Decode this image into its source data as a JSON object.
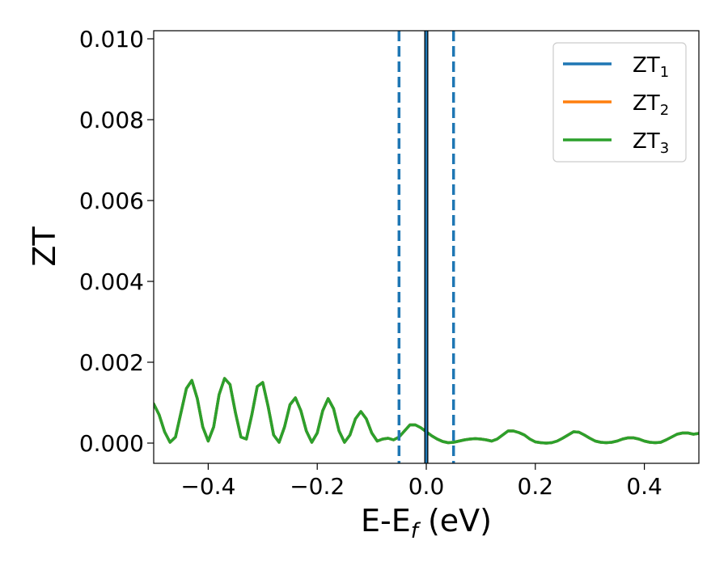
{
  "chart_data": {
    "type": "line",
    "title": "",
    "xlabel": {
      "main": "E-E",
      "sub": "f",
      "suffix": " (eV)"
    },
    "ylabel": "ZT",
    "xlim": [
      -0.5,
      0.5
    ],
    "ylim": [
      -0.0005,
      0.0102
    ],
    "x_ticks": [
      -0.4,
      -0.2,
      0.0,
      0.2,
      0.4
    ],
    "x_tick_labels": [
      "−0.4",
      "−0.2",
      "0.0",
      "0.2",
      "0.4"
    ],
    "y_ticks": [
      0.0,
      0.002,
      0.004,
      0.006,
      0.008,
      0.01
    ],
    "y_tick_labels": [
      "0.000",
      "0.002",
      "0.004",
      "0.006",
      "0.008",
      "0.010"
    ],
    "grid": false,
    "legend_position": "top-right",
    "x": [
      -0.5,
      -0.49,
      -0.48,
      -0.47,
      -0.46,
      -0.45,
      -0.44,
      -0.43,
      -0.42,
      -0.41,
      -0.4,
      -0.39,
      -0.38,
      -0.37,
      -0.36,
      -0.35,
      -0.34,
      -0.33,
      -0.32,
      -0.31,
      -0.3,
      -0.29,
      -0.28,
      -0.27,
      -0.26,
      -0.25,
      -0.24,
      -0.23,
      -0.22,
      -0.21,
      -0.2,
      -0.19,
      -0.18,
      -0.17,
      -0.16,
      -0.15,
      -0.14,
      -0.13,
      -0.12,
      -0.11,
      -0.1,
      -0.09,
      -0.08,
      -0.07,
      -0.06,
      -0.05,
      -0.04,
      -0.03,
      -0.02,
      -0.01,
      0.0,
      0.01,
      0.02,
      0.03,
      0.04,
      0.05,
      0.06,
      0.07,
      0.08,
      0.09,
      0.1,
      0.11,
      0.12,
      0.13,
      0.14,
      0.15,
      0.16,
      0.17,
      0.18,
      0.19,
      0.2,
      0.21,
      0.22,
      0.23,
      0.24,
      0.25,
      0.26,
      0.27,
      0.28,
      0.29,
      0.3,
      0.31,
      0.32,
      0.33,
      0.34,
      0.35,
      0.36,
      0.37,
      0.38,
      0.39,
      0.4,
      0.41,
      0.42,
      0.43,
      0.44,
      0.45,
      0.46,
      0.47,
      0.48,
      0.49,
      0.5
    ],
    "series": [
      {
        "name": "ZT",
        "name_sub": "1",
        "color": "#1f77b4",
        "values": [
          0.00097,
          0.0007,
          0.00028,
          2e-05,
          0.00015,
          0.00075,
          0.00135,
          0.00155,
          0.0011,
          0.0004,
          5e-05,
          0.0004,
          0.0012,
          0.0016,
          0.00145,
          0.00075,
          0.00015,
          0.0001,
          0.0007,
          0.0014,
          0.0015,
          0.0009,
          0.0002,
          2e-05,
          0.0004,
          0.00095,
          0.00112,
          0.0008,
          0.0003,
          2e-05,
          0.00025,
          0.0008,
          0.0011,
          0.00085,
          0.0003,
          2e-05,
          0.0002,
          0.0006,
          0.00078,
          0.0006,
          0.00025,
          5e-05,
          0.0001,
          0.00012,
          8e-05,
          0.00015,
          0.0003,
          0.00045,
          0.00045,
          0.00038,
          0.00028,
          0.00018,
          0.0001,
          4e-05,
          1e-05,
          2e-05,
          5e-05,
          8e-05,
          0.0001,
          0.00011,
          0.0001,
          8e-05,
          5e-05,
          0.0001,
          0.0002,
          0.0003,
          0.0003,
          0.00026,
          0.0002,
          0.0001,
          3e-05,
          1e-05,
          0.0,
          1e-05,
          5e-05,
          0.00012,
          0.0002,
          0.00028,
          0.00027,
          0.0002,
          0.00012,
          5e-05,
          2e-05,
          1e-05,
          2e-05,
          5e-05,
          0.0001,
          0.00013,
          0.00013,
          0.0001,
          5e-05,
          2e-05,
          1e-05,
          2e-05,
          8e-05,
          0.00015,
          0.00022,
          0.00025,
          0.00025,
          0.00022,
          0.00024
        ]
      },
      {
        "name": "ZT",
        "name_sub": "2",
        "color": "#ff7f0e",
        "values": [
          0.00097,
          0.0007,
          0.00028,
          2e-05,
          0.00015,
          0.00075,
          0.00135,
          0.00155,
          0.0011,
          0.0004,
          5e-05,
          0.0004,
          0.0012,
          0.0016,
          0.00145,
          0.00075,
          0.00015,
          0.0001,
          0.0007,
          0.0014,
          0.0015,
          0.0009,
          0.0002,
          2e-05,
          0.0004,
          0.00095,
          0.00112,
          0.0008,
          0.0003,
          2e-05,
          0.00025,
          0.0008,
          0.0011,
          0.00085,
          0.0003,
          2e-05,
          0.0002,
          0.0006,
          0.00078,
          0.0006,
          0.00025,
          5e-05,
          0.0001,
          0.00012,
          8e-05,
          0.00015,
          0.0003,
          0.00045,
          0.00045,
          0.00038,
          0.00028,
          0.00018,
          0.0001,
          4e-05,
          1e-05,
          2e-05,
          5e-05,
          8e-05,
          0.0001,
          0.00011,
          0.0001,
          8e-05,
          5e-05,
          0.0001,
          0.0002,
          0.0003,
          0.0003,
          0.00026,
          0.0002,
          0.0001,
          3e-05,
          1e-05,
          0.0,
          1e-05,
          5e-05,
          0.00012,
          0.0002,
          0.00028,
          0.00027,
          0.0002,
          0.00012,
          5e-05,
          2e-05,
          1e-05,
          2e-05,
          5e-05,
          0.0001,
          0.00013,
          0.00013,
          0.0001,
          5e-05,
          2e-05,
          1e-05,
          2e-05,
          8e-05,
          0.00015,
          0.00022,
          0.00025,
          0.00025,
          0.00022,
          0.00024
        ]
      },
      {
        "name": "ZT",
        "name_sub": "3",
        "color": "#2ca02c",
        "values": [
          0.00097,
          0.0007,
          0.00028,
          2e-05,
          0.00015,
          0.00075,
          0.00135,
          0.00155,
          0.0011,
          0.0004,
          5e-05,
          0.0004,
          0.0012,
          0.0016,
          0.00145,
          0.00075,
          0.00015,
          0.0001,
          0.0007,
          0.0014,
          0.0015,
          0.0009,
          0.0002,
          2e-05,
          0.0004,
          0.00095,
          0.00112,
          0.0008,
          0.0003,
          2e-05,
          0.00025,
          0.0008,
          0.0011,
          0.00085,
          0.0003,
          2e-05,
          0.0002,
          0.0006,
          0.00078,
          0.0006,
          0.00025,
          5e-05,
          0.0001,
          0.00012,
          8e-05,
          0.00015,
          0.0003,
          0.00045,
          0.00045,
          0.00038,
          0.00028,
          0.00018,
          0.0001,
          4e-05,
          1e-05,
          2e-05,
          5e-05,
          8e-05,
          0.0001,
          0.00011,
          0.0001,
          8e-05,
          5e-05,
          0.0001,
          0.0002,
          0.0003,
          0.0003,
          0.00026,
          0.0002,
          0.0001,
          3e-05,
          1e-05,
          0.0,
          1e-05,
          5e-05,
          0.00012,
          0.0002,
          0.00028,
          0.00027,
          0.0002,
          0.00012,
          5e-05,
          2e-05,
          1e-05,
          2e-05,
          5e-05,
          0.0001,
          0.00013,
          0.00013,
          0.0001,
          5e-05,
          2e-05,
          1e-05,
          2e-05,
          8e-05,
          0.00015,
          0.00022,
          0.00025,
          0.00025,
          0.00022,
          0.00024
        ]
      }
    ],
    "vlines": [
      {
        "x": -0.05,
        "style": "dashed",
        "color": "#1f77b4"
      },
      {
        "x": 0.0,
        "style": "solid",
        "color": "#000000"
      },
      {
        "x": 0.0,
        "style": "solid",
        "color": "#1f77b4"
      },
      {
        "x": 0.05,
        "style": "dashed",
        "color": "#1f77b4"
      }
    ]
  }
}
